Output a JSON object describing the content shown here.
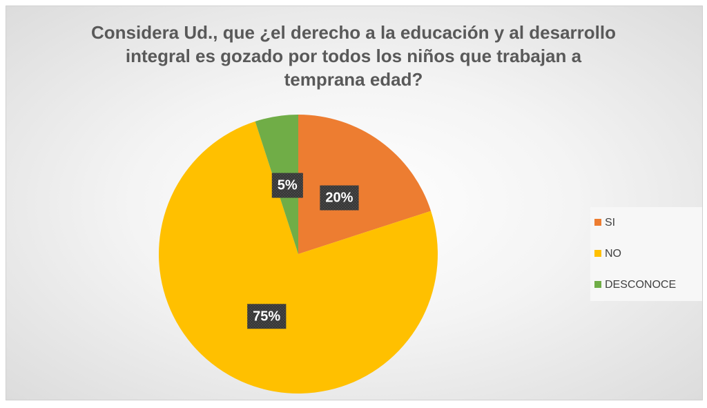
{
  "chart_data": {
    "type": "pie",
    "title": "Considera Ud., que ¿el derecho a la educación y al desarrollo integral es gozado por todos los niños que trabajan a temprana edad?",
    "categories": [
      "SI",
      "NO",
      "DESCONOCE"
    ],
    "values": [
      20,
      75,
      5
    ],
    "value_labels": [
      "20%",
      "75%",
      "5%"
    ],
    "colors": [
      "#ED7D31",
      "#FFC000",
      "#70AD47"
    ],
    "legend": "right"
  }
}
